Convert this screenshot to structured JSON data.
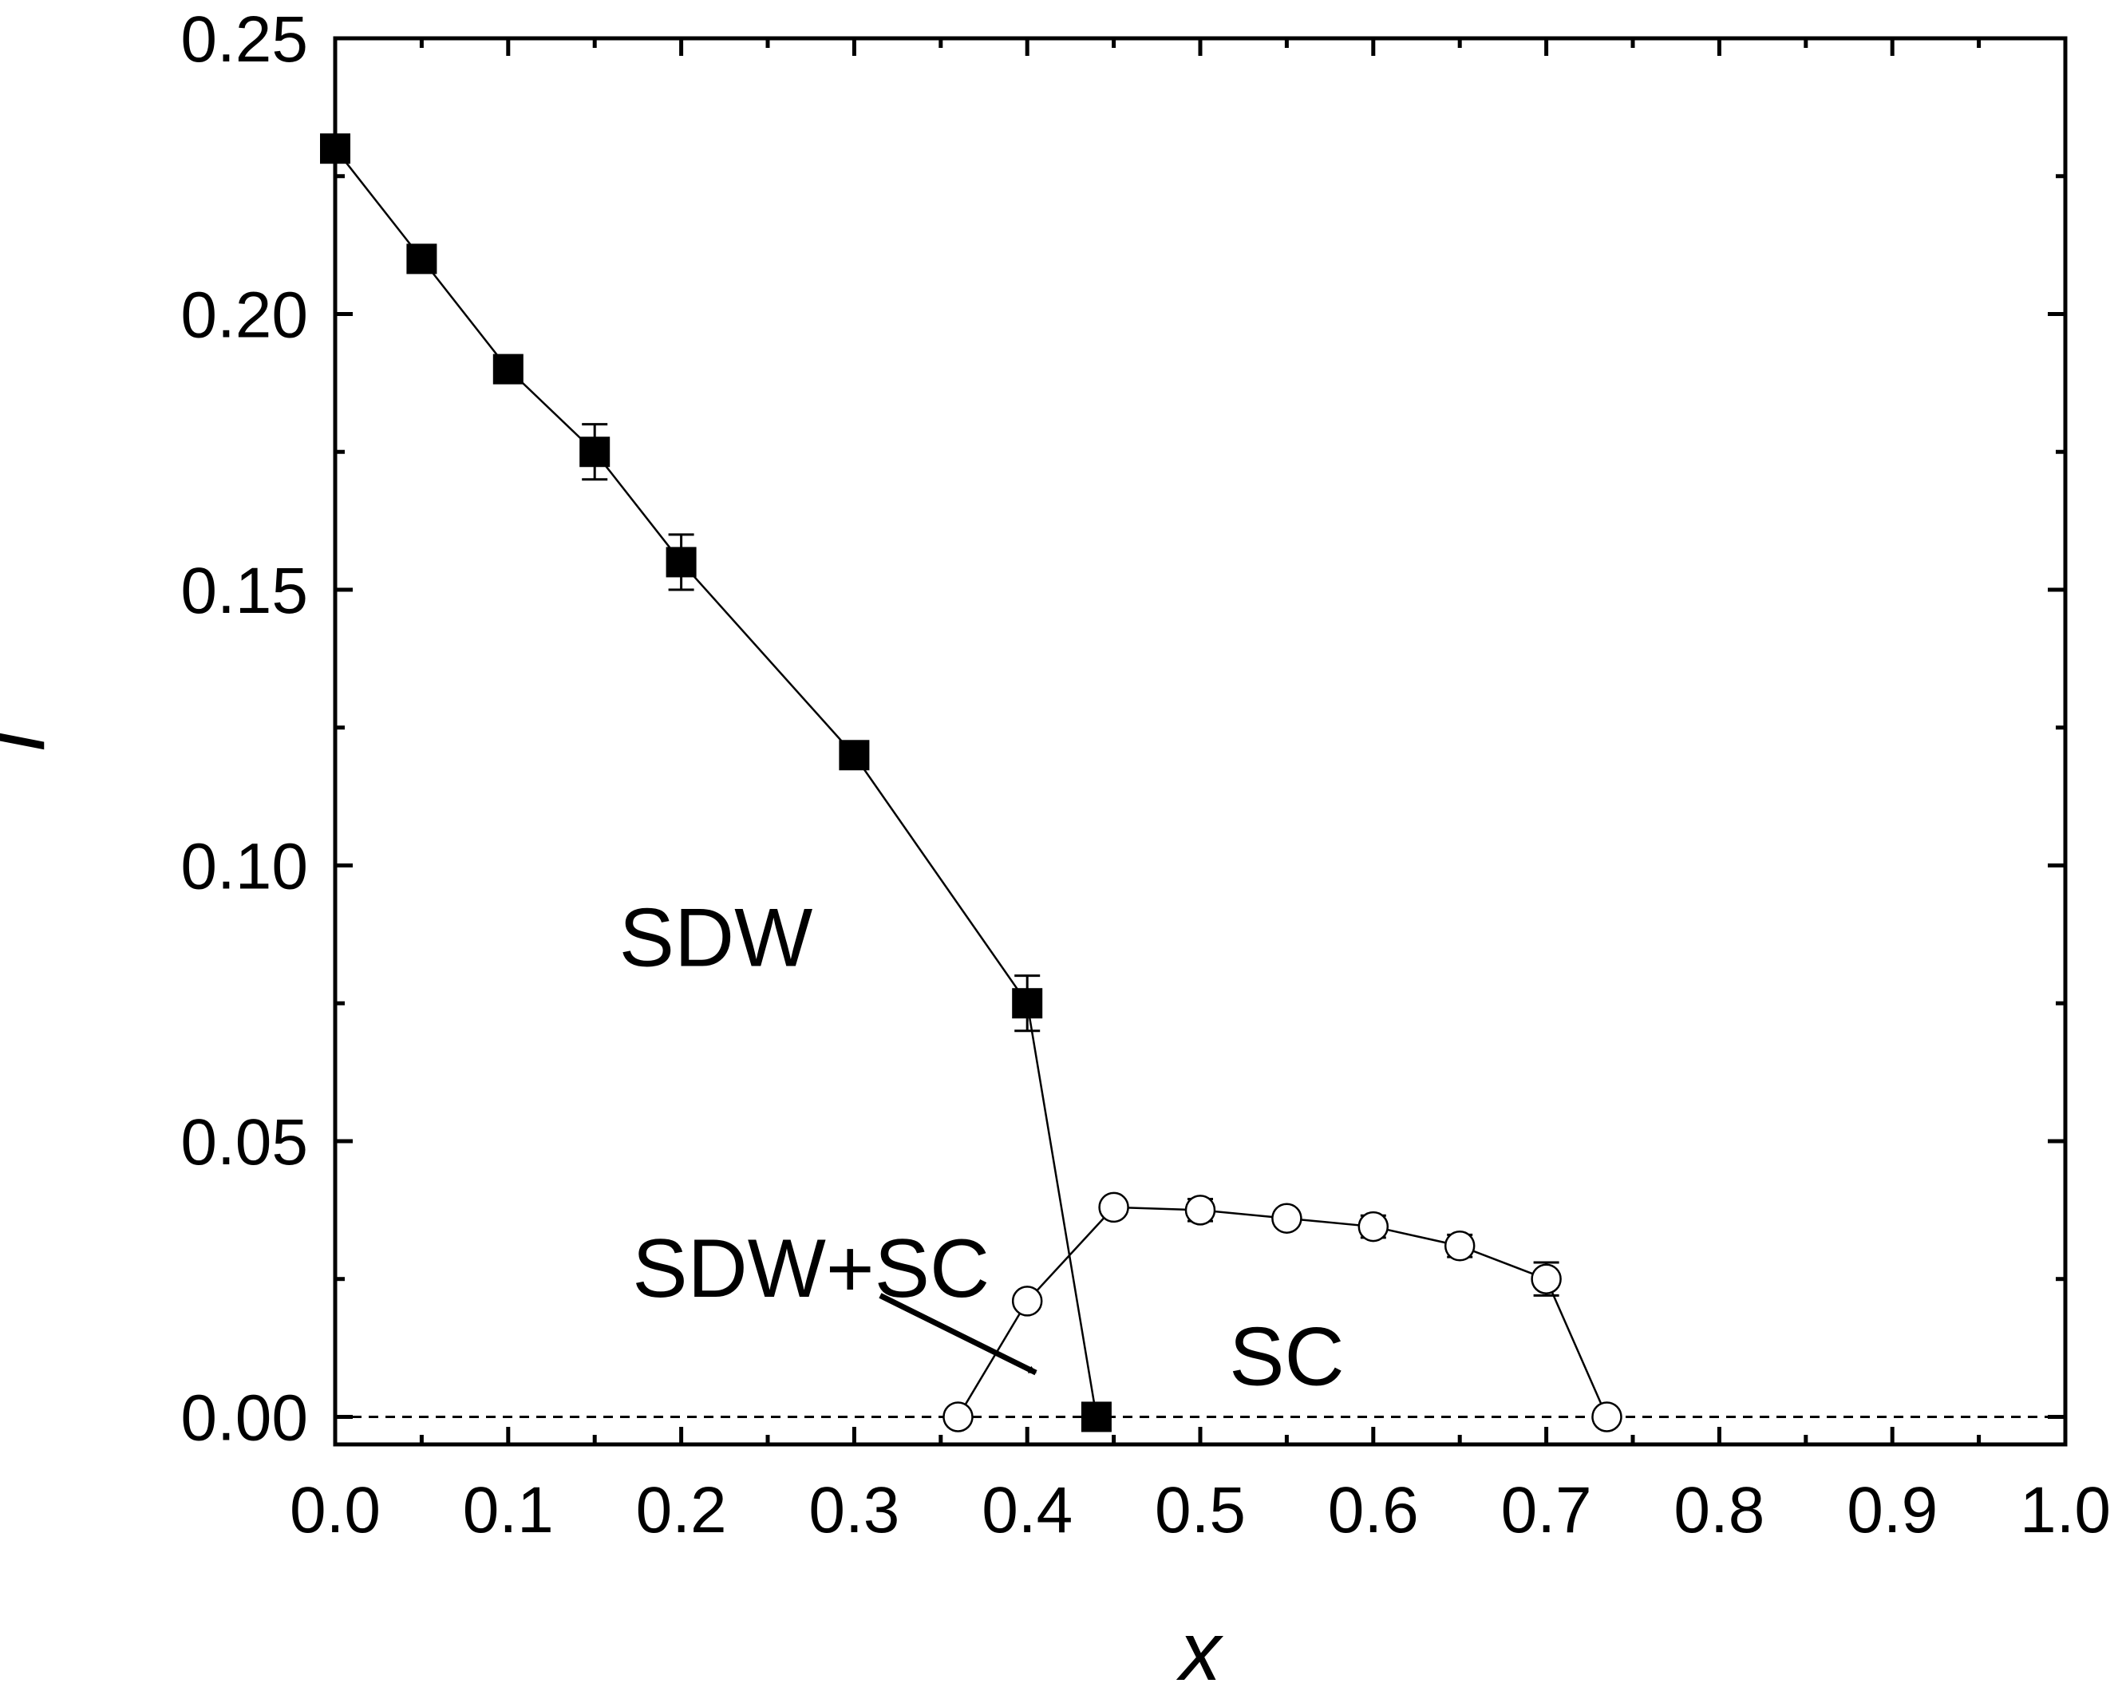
{
  "chart_data": {
    "type": "scatter",
    "title": "",
    "xlabel": "x",
    "ylabel": "T",
    "xlim": [
      0.0,
      1.0
    ],
    "ylim": [
      -0.005,
      0.25
    ],
    "x_ticks": [
      "0.0",
      "0.1",
      "0.2",
      "0.3",
      "0.4",
      "0.5",
      "0.6",
      "0.7",
      "0.8",
      "0.9",
      "1.0"
    ],
    "y_ticks": [
      "0.00",
      "0.05",
      "0.10",
      "0.15",
      "0.20",
      "0.25"
    ],
    "grid": false,
    "series": [
      {
        "marker": "filled-square",
        "color": "#000000",
        "points": [
          {
            "x": 0.0,
            "y": 0.23,
            "err": 0
          },
          {
            "x": 0.05,
            "y": 0.21,
            "err": 0
          },
          {
            "x": 0.1,
            "y": 0.19,
            "err": 0
          },
          {
            "x": 0.15,
            "y": 0.175,
            "err": 0.005
          },
          {
            "x": 0.2,
            "y": 0.155,
            "err": 0.005
          },
          {
            "x": 0.3,
            "y": 0.12,
            "err": 0
          },
          {
            "x": 0.4,
            "y": 0.075,
            "err": 0.005
          },
          {
            "x": 0.44,
            "y": 0.0,
            "err": 0
          }
        ]
      },
      {
        "marker": "open-circle",
        "color": "#000000",
        "points": [
          {
            "x": 0.36,
            "y": 0.0,
            "err": 0
          },
          {
            "x": 0.4,
            "y": 0.021,
            "err": 0
          },
          {
            "x": 0.45,
            "y": 0.038,
            "err": 0
          },
          {
            "x": 0.5,
            "y": 0.0375,
            "err": 0.002
          },
          {
            "x": 0.55,
            "y": 0.036,
            "err": 0
          },
          {
            "x": 0.6,
            "y": 0.0345,
            "err": 0.002
          },
          {
            "x": 0.65,
            "y": 0.031,
            "err": 0.002
          },
          {
            "x": 0.7,
            "y": 0.025,
            "err": 0.003
          },
          {
            "x": 0.735,
            "y": 0.0,
            "err": 0
          }
        ]
      }
    ],
    "reference_line": {
      "y": 0.0,
      "style": "dashed"
    },
    "annotations": [
      {
        "text": "SDW",
        "x": 0.22,
        "y": 0.087
      },
      {
        "text": "SDW+SC",
        "x": 0.275,
        "y": 0.027
      },
      {
        "text": "SC",
        "x": 0.55,
        "y": 0.011
      }
    ],
    "arrow": {
      "from": [
        0.315,
        0.022
      ],
      "to": [
        0.405,
        0.008
      ]
    }
  }
}
